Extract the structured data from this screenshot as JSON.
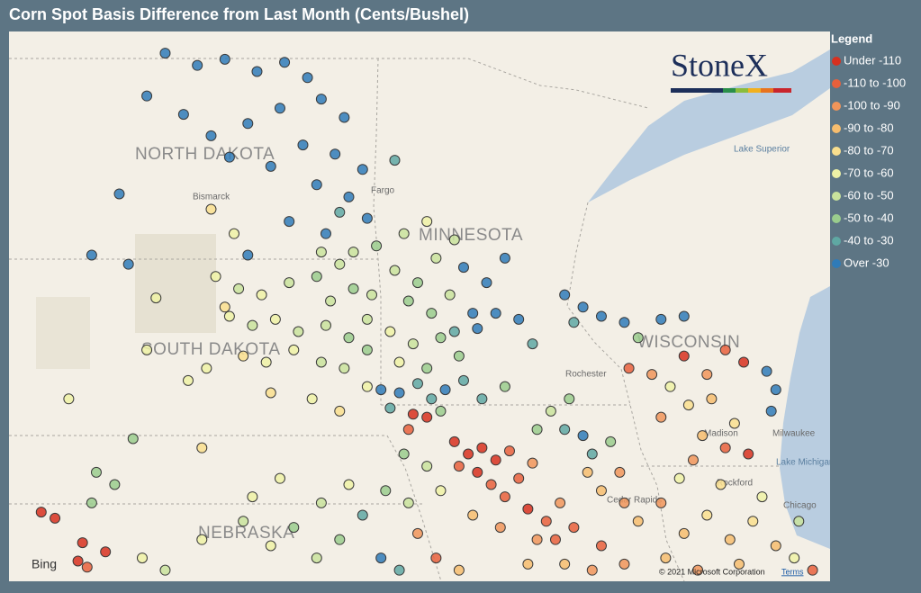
{
  "title": "Corn Spot Basis Difference from Last Month (Cents/Bushel)",
  "brand": "StoneX",
  "legend": {
    "title": "Legend",
    "items": [
      {
        "label": "Under -110",
        "color": "#d7301f"
      },
      {
        "label": "-110 to -100",
        "color": "#e8603c"
      },
      {
        "label": "-100 to -90",
        "color": "#f0955a"
      },
      {
        "label": "-90 to -80",
        "color": "#f6bd6e"
      },
      {
        "label": "-80 to -70",
        "color": "#f9df8e"
      },
      {
        "label": "-70 to -60",
        "color": "#eef2a6"
      },
      {
        "label": "-60 to -50",
        "color": "#c9e39c"
      },
      {
        "label": "-50 to -40",
        "color": "#9acd8d"
      },
      {
        "label": "-40 to -30",
        "color": "#5fa8a3"
      },
      {
        "label": "Over -30",
        "color": "#2f7bb8"
      }
    ]
  },
  "map": {
    "attribution": [
      "Bing",
      "© 2021 Microsoft Corporation",
      "Terms"
    ],
    "places": [
      "NORTH DAKOTA",
      "MINNESOTA",
      "SOUTH DAKOTA",
      "WISCONSIN",
      "NEBRASKA",
      "Bismarck",
      "Fargo",
      "Lake Superior",
      "Milwaukee",
      "Lake Michigan",
      "Chicago",
      "Madison",
      "Rockford",
      "Cedar Rapids",
      "Rochester"
    ],
    "points": [
      [
        -101.3,
        49.25,
        9
      ],
      [
        -100.6,
        49.05,
        9
      ],
      [
        -100.0,
        49.15,
        9
      ],
      [
        -99.3,
        48.95,
        9
      ],
      [
        -98.7,
        49.1,
        9
      ],
      [
        -98.2,
        48.85,
        9
      ],
      [
        -97.9,
        48.5,
        9
      ],
      [
        -97.4,
        48.2,
        9
      ],
      [
        -101.7,
        48.55,
        9
      ],
      [
        -100.9,
        48.25,
        9
      ],
      [
        -100.3,
        47.9,
        9
      ],
      [
        -99.5,
        48.1,
        9
      ],
      [
        -98.8,
        48.35,
        9
      ],
      [
        -98.3,
        47.75,
        9
      ],
      [
        -97.6,
        47.6,
        9
      ],
      [
        -97.0,
        47.35,
        9
      ],
      [
        -99.9,
        47.55,
        9
      ],
      [
        -99.0,
        47.4,
        9
      ],
      [
        -98.0,
        47.1,
        9
      ],
      [
        -97.3,
        46.9,
        9
      ],
      [
        -96.9,
        46.55,
        9
      ],
      [
        -98.6,
        46.5,
        9
      ],
      [
        -97.8,
        46.3,
        9
      ],
      [
        -102.3,
        46.95,
        9
      ],
      [
        -102.9,
        45.95,
        9
      ],
      [
        -102.1,
        45.8,
        9
      ],
      [
        -99.5,
        45.95,
        9
      ],
      [
        -96.3,
        47.5,
        8
      ],
      [
        -97.5,
        46.65,
        8
      ],
      [
        -96.7,
        46.1,
        7
      ],
      [
        -97.2,
        46.0,
        6
      ],
      [
        -97.9,
        46.0,
        6
      ],
      [
        -99.8,
        46.3,
        5
      ],
      [
        -100.3,
        46.7,
        4
      ],
      [
        -100.2,
        45.6,
        5
      ],
      [
        -99.7,
        45.4,
        6
      ],
      [
        -99.2,
        45.3,
        5
      ],
      [
        -98.6,
        45.5,
        6
      ],
      [
        -98.0,
        45.6,
        7
      ],
      [
        -97.5,
        45.8,
        6
      ],
      [
        -97.2,
        45.4,
        7
      ],
      [
        -96.8,
        45.3,
        6
      ],
      [
        -99.9,
        44.95,
        5
      ],
      [
        -99.4,
        44.8,
        6
      ],
      [
        -98.9,
        44.9,
        5
      ],
      [
        -98.4,
        44.7,
        6
      ],
      [
        -97.8,
        44.8,
        6
      ],
      [
        -97.3,
        44.6,
        7
      ],
      [
        -96.9,
        44.9,
        6
      ],
      [
        -99.6,
        44.3,
        4
      ],
      [
        -99.1,
        44.2,
        5
      ],
      [
        -98.5,
        44.4,
        5
      ],
      [
        -97.9,
        44.2,
        6
      ],
      [
        -97.4,
        44.1,
        6
      ],
      [
        -96.9,
        44.4,
        7
      ],
      [
        -100.4,
        44.1,
        5
      ],
      [
        -99.0,
        43.7,
        4
      ],
      [
        -98.1,
        43.6,
        5
      ],
      [
        -97.5,
        43.4,
        4
      ],
      [
        -96.9,
        43.8,
        5
      ],
      [
        -100.0,
        45.1,
        4
      ],
      [
        -97.7,
        45.2,
        6
      ],
      [
        -101.5,
        45.25,
        5
      ],
      [
        -101.7,
        44.4,
        5
      ],
      [
        -100.8,
        43.9,
        5
      ],
      [
        -103.4,
        43.6,
        5
      ],
      [
        -102.0,
        42.95,
        7
      ],
      [
        -100.5,
        42.8,
        4
      ],
      [
        -96.3,
        45.7,
        6
      ],
      [
        -95.8,
        45.5,
        7
      ],
      [
        -95.4,
        45.9,
        6
      ],
      [
        -96.0,
        45.2,
        7
      ],
      [
        -95.5,
        45.0,
        7
      ],
      [
        -95.1,
        45.3,
        6
      ],
      [
        -96.4,
        44.7,
        5
      ],
      [
        -95.9,
        44.5,
        6
      ],
      [
        -95.3,
        44.6,
        7
      ],
      [
        -94.9,
        44.3,
        7
      ],
      [
        -95.6,
        44.1,
        7
      ],
      [
        -96.2,
        44.2,
        5
      ],
      [
        -95.0,
        44.7,
        8
      ],
      [
        -94.6,
        45.0,
        9
      ],
      [
        -96.1,
        46.3,
        6
      ],
      [
        -95.6,
        46.5,
        5
      ],
      [
        -95.0,
        46.2,
        6
      ],
      [
        -94.8,
        45.75,
        9
      ],
      [
        -94.3,
        45.5,
        9
      ],
      [
        -93.9,
        45.9,
        9
      ],
      [
        -94.1,
        45.0,
        9
      ],
      [
        -93.6,
        44.9,
        9
      ],
      [
        -94.5,
        44.75,
        9
      ],
      [
        -93.3,
        44.5,
        8
      ],
      [
        -92.6,
        45.3,
        9
      ],
      [
        -92.2,
        45.1,
        9
      ],
      [
        -91.8,
        44.95,
        9
      ],
      [
        -91.3,
        44.85,
        9
      ],
      [
        -92.4,
        44.85,
        8
      ],
      [
        -90.5,
        44.9,
        9
      ],
      [
        -90.0,
        44.95,
        9
      ],
      [
        -91.0,
        44.6,
        7
      ],
      [
        -96.6,
        43.75,
        9
      ],
      [
        -96.2,
        43.7,
        9
      ],
      [
        -95.8,
        43.85,
        8
      ],
      [
        -95.5,
        43.6,
        8
      ],
      [
        -95.2,
        43.75,
        9
      ],
      [
        -96.4,
        43.45,
        8
      ],
      [
        -95.9,
        43.35,
        0
      ],
      [
        -95.6,
        43.3,
        0
      ],
      [
        -96.0,
        43.1,
        1
      ],
      [
        -95.3,
        43.4,
        7
      ],
      [
        -94.8,
        43.9,
        8
      ],
      [
        -94.4,
        43.6,
        8
      ],
      [
        -93.9,
        43.8,
        7
      ],
      [
        -95.0,
        42.9,
        0
      ],
      [
        -94.7,
        42.7,
        0
      ],
      [
        -94.4,
        42.8,
        0
      ],
      [
        -94.1,
        42.6,
        0
      ],
      [
        -93.8,
        42.75,
        1
      ],
      [
        -94.9,
        42.5,
        1
      ],
      [
        -94.5,
        42.4,
        0
      ],
      [
        -93.6,
        42.3,
        1
      ],
      [
        -93.3,
        42.55,
        2
      ],
      [
        -94.2,
        42.2,
        1
      ],
      [
        -93.9,
        42.0,
        1
      ],
      [
        -93.4,
        41.8,
        0
      ],
      [
        -93.0,
        41.6,
        1
      ],
      [
        -92.7,
        41.9,
        2
      ],
      [
        -92.4,
        41.5,
        1
      ],
      [
        -93.2,
        41.3,
        2
      ],
      [
        -92.8,
        41.3,
        1
      ],
      [
        -94.0,
        41.5,
        2
      ],
      [
        -94.6,
        41.7,
        3
      ],
      [
        -95.3,
        42.1,
        5
      ],
      [
        -95.6,
        42.5,
        6
      ],
      [
        -96.1,
        42.7,
        7
      ],
      [
        -92.6,
        43.1,
        8
      ],
      [
        -92.2,
        43.0,
        9
      ],
      [
        -92.0,
        42.7,
        8
      ],
      [
        -91.6,
        42.9,
        7
      ],
      [
        -91.4,
        42.4,
        2
      ],
      [
        -92.1,
        42.4,
        3
      ],
      [
        -91.8,
        42.1,
        3
      ],
      [
        -91.3,
        41.9,
        2
      ],
      [
        -92.9,
        43.4,
        6
      ],
      [
        -93.2,
        43.1,
        7
      ],
      [
        -92.5,
        43.6,
        7
      ],
      [
        -91.2,
        44.1,
        1
      ],
      [
        -90.7,
        44.0,
        2
      ],
      [
        -90.0,
        44.3,
        0
      ],
      [
        -89.5,
        44.0,
        2
      ],
      [
        -89.1,
        44.4,
        1
      ],
      [
        -88.7,
        44.2,
        0
      ],
      [
        -88.2,
        44.05,
        9
      ],
      [
        -88.0,
        43.75,
        9
      ],
      [
        -88.1,
        43.4,
        9
      ],
      [
        -89.4,
        43.6,
        3
      ],
      [
        -89.9,
        43.5,
        4
      ],
      [
        -90.5,
        43.3,
        2
      ],
      [
        -89.6,
        43.0,
        3
      ],
      [
        -89.1,
        42.8,
        1
      ],
      [
        -88.6,
        42.7,
        0
      ],
      [
        -89.8,
        42.6,
        2
      ],
      [
        -90.3,
        43.8,
        5
      ],
      [
        -88.9,
        43.2,
        4
      ],
      [
        -91.0,
        41.6,
        3
      ],
      [
        -90.5,
        41.9,
        2
      ],
      [
        -90.0,
        41.4,
        3
      ],
      [
        -89.5,
        41.7,
        4
      ],
      [
        -89.0,
        41.3,
        3
      ],
      [
        -88.5,
        41.6,
        4
      ],
      [
        -88.0,
        41.2,
        3
      ],
      [
        -87.6,
        41.0,
        5
      ],
      [
        -87.2,
        40.8,
        1
      ],
      [
        -88.8,
        40.9,
        3
      ],
      [
        -89.7,
        40.8,
        2
      ],
      [
        -90.4,
        41.0,
        3
      ],
      [
        -91.3,
        40.9,
        2
      ],
      [
        -91.8,
        41.2,
        1
      ],
      [
        -92.0,
        40.8,
        2
      ],
      [
        -92.6,
        40.9,
        3
      ],
      [
        -93.4,
        40.9,
        3
      ],
      [
        -87.5,
        41.6,
        6
      ],
      [
        -88.3,
        42.0,
        5
      ],
      [
        -89.2,
        42.2,
        4
      ],
      [
        -90.1,
        42.3,
        5
      ],
      [
        -104.0,
        41.75,
        0
      ],
      [
        -103.7,
        41.65,
        0
      ],
      [
        -103.1,
        41.25,
        0
      ],
      [
        -102.6,
        41.1,
        0
      ],
      [
        -103.2,
        40.95,
        0
      ],
      [
        -103.0,
        40.85,
        1
      ],
      [
        -102.8,
        42.4,
        7
      ],
      [
        -102.4,
        42.2,
        7
      ],
      [
        -102.9,
        41.9,
        7
      ],
      [
        -101.8,
        41.0,
        5
      ],
      [
        -101.3,
        40.8,
        6
      ],
      [
        -100.5,
        41.3,
        5
      ],
      [
        -99.6,
        41.6,
        6
      ],
      [
        -99.0,
        41.2,
        5
      ],
      [
        -98.5,
        41.5,
        7
      ],
      [
        -98.0,
        41.0,
        6
      ],
      [
        -97.5,
        41.3,
        7
      ],
      [
        -97.0,
        41.7,
        8
      ],
      [
        -96.6,
        41.0,
        9
      ],
      [
        -96.2,
        40.8,
        8
      ],
      [
        -95.8,
        41.4,
        2
      ],
      [
        -95.4,
        41.0,
        1
      ],
      [
        -94.9,
        40.8,
        3
      ],
      [
        -97.9,
        41.9,
        6
      ],
      [
        -97.3,
        42.2,
        5
      ],
      [
        -96.5,
        42.1,
        7
      ],
      [
        -96.0,
        41.9,
        6
      ],
      [
        -98.8,
        42.3,
        5
      ],
      [
        -99.4,
        42.0,
        5
      ]
    ]
  }
}
